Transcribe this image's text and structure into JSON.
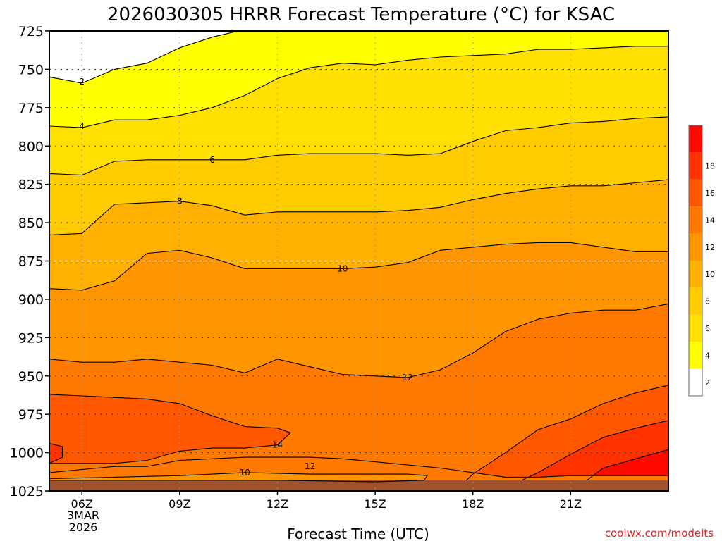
{
  "chart_data": {
    "type": "contour",
    "title": "2026030305 HRRR Forecast Temperature (°C) for KSAC",
    "xlabel": "Forecast Time (UTC)",
    "credit": "coolwx.com/modelts",
    "ylim": [
      725,
      1025
    ],
    "xlim": [
      5,
      24
    ],
    "y_ticks": [
      "725",
      "750",
      "775",
      "800",
      "825",
      "850",
      "875",
      "900",
      "925",
      "950",
      "975",
      "1000",
      "1025"
    ],
    "x_ticks": [
      {
        "hour": 6,
        "label": "06Z"
      },
      {
        "hour": 9,
        "label": "09Z"
      },
      {
        "hour": 12,
        "label": "12Z"
      },
      {
        "hour": 15,
        "label": "15Z"
      },
      {
        "hour": 18,
        "label": "18Z"
      },
      {
        "hour": 21,
        "label": "21Z"
      }
    ],
    "x_sub_labels": [
      "3MAR",
      "2026"
    ],
    "colorbar": {
      "levels": [
        "2",
        "4",
        "6",
        "8",
        "10",
        "12",
        "14",
        "16",
        "18"
      ],
      "colors": [
        "#ffffff",
        "#ffff00",
        "#ffe000",
        "#ffcc00",
        "#ffb000",
        "#ff9600",
        "#ff7800",
        "#ff5800",
        "#ff3200",
        "#ff0a00"
      ]
    },
    "contours": [
      {
        "level": 2,
        "label": "2",
        "label_at": [
          6,
          758
        ],
        "points": [
          [
            5,
            755
          ],
          [
            6,
            759
          ],
          [
            7,
            750
          ],
          [
            8,
            746
          ],
          [
            9,
            736
          ],
          [
            10,
            729
          ],
          [
            11,
            724
          ]
        ]
      },
      {
        "level": 4,
        "label": "4",
        "label_at": [
          6,
          787
        ],
        "points": [
          [
            5,
            787
          ],
          [
            6,
            788
          ],
          [
            7,
            783
          ],
          [
            8,
            783
          ],
          [
            9,
            780
          ],
          [
            10,
            775
          ],
          [
            11,
            767
          ],
          [
            12,
            756
          ],
          [
            13,
            749
          ],
          [
            14,
            746
          ],
          [
            15,
            747
          ],
          [
            16,
            744
          ],
          [
            17,
            742
          ],
          [
            18,
            741
          ],
          [
            19,
            740
          ],
          [
            20,
            737
          ],
          [
            21,
            737
          ],
          [
            22,
            736
          ],
          [
            23,
            735
          ],
          [
            24,
            735
          ]
        ]
      },
      {
        "level": 6,
        "label": "6",
        "label_at": [
          10,
          809
        ],
        "points": [
          [
            5,
            818
          ],
          [
            6,
            819
          ],
          [
            7,
            810
          ],
          [
            8,
            809
          ],
          [
            9,
            809
          ],
          [
            10,
            809
          ],
          [
            11,
            809
          ],
          [
            12,
            806
          ],
          [
            13,
            805
          ],
          [
            14,
            805
          ],
          [
            15,
            805
          ],
          [
            16,
            806
          ],
          [
            17,
            805
          ],
          [
            18,
            797
          ],
          [
            19,
            790
          ],
          [
            20,
            788
          ],
          [
            21,
            785
          ],
          [
            22,
            784
          ],
          [
            23,
            782
          ],
          [
            24,
            781
          ]
        ]
      },
      {
        "level": 8,
        "label": "8",
        "label_at": [
          9,
          836
        ],
        "points": [
          [
            5,
            858
          ],
          [
            6,
            857
          ],
          [
            7,
            838
          ],
          [
            8,
            837
          ],
          [
            9,
            836
          ],
          [
            10,
            839
          ],
          [
            11,
            845
          ],
          [
            12,
            843
          ],
          [
            13,
            843
          ],
          [
            14,
            843
          ],
          [
            15,
            843
          ],
          [
            16,
            842
          ],
          [
            17,
            840
          ],
          [
            18,
            835
          ],
          [
            19,
            831
          ],
          [
            20,
            828
          ],
          [
            21,
            826
          ],
          [
            22,
            826
          ],
          [
            23,
            824
          ],
          [
            24,
            822
          ]
        ]
      },
      {
        "level": 10,
        "label": "10",
        "label_at": [
          14,
          880
        ],
        "points": [
          [
            5,
            893
          ],
          [
            6,
            894
          ],
          [
            7,
            888
          ],
          [
            8,
            870
          ],
          [
            9,
            868
          ],
          [
            10,
            873
          ],
          [
            11,
            880
          ],
          [
            12,
            880
          ],
          [
            13,
            880
          ],
          [
            14,
            880
          ],
          [
            15,
            879
          ],
          [
            16,
            876
          ],
          [
            17,
            868
          ],
          [
            18,
            866
          ],
          [
            19,
            864
          ],
          [
            20,
            863
          ],
          [
            21,
            863
          ],
          [
            22,
            866
          ],
          [
            23,
            869
          ],
          [
            24,
            869
          ]
        ]
      },
      {
        "level": 12,
        "label": "12",
        "label_at": [
          16,
          951
        ],
        "points": [
          [
            5,
            939
          ],
          [
            6,
            941
          ],
          [
            7,
            941
          ],
          [
            8,
            939
          ],
          [
            9,
            941
          ],
          [
            10,
            943
          ],
          [
            11,
            948
          ],
          [
            12,
            939
          ],
          [
            13,
            944
          ],
          [
            14,
            949
          ],
          [
            15,
            950
          ],
          [
            16,
            951
          ],
          [
            17,
            946
          ],
          [
            18,
            935
          ],
          [
            19,
            921
          ],
          [
            20,
            913
          ],
          [
            21,
            909
          ],
          [
            22,
            907
          ],
          [
            23,
            907
          ],
          [
            24,
            903
          ]
        ]
      },
      {
        "level": 14,
        "label": "14",
        "label_at": [
          12,
          995
        ],
        "points": [
          [
            5,
            962
          ],
          [
            6,
            963
          ],
          [
            7,
            964
          ],
          [
            8,
            965
          ],
          [
            9,
            968
          ],
          [
            10,
            976
          ],
          [
            11,
            983
          ],
          [
            12,
            984
          ],
          [
            12.4,
            987
          ],
          [
            12.2,
            991
          ],
          [
            12,
            995
          ],
          [
            11,
            997
          ],
          [
            10,
            997
          ],
          [
            9,
            999
          ],
          [
            8,
            1005
          ],
          [
            7,
            1007
          ],
          [
            6,
            1007
          ],
          [
            5,
            1007
          ]
        ]
      },
      {
        "level": 12,
        "label": "12",
        "label_at": [
          13,
          1009
        ],
        "points": [
          [
            5,
            1013
          ],
          [
            6,
            1011
          ],
          [
            7,
            1009
          ],
          [
            8,
            1009
          ],
          [
            9,
            1005
          ],
          [
            10,
            1004
          ],
          [
            11,
            1003
          ],
          [
            12,
            1003
          ],
          [
            13,
            1003
          ],
          [
            14,
            1004
          ],
          [
            15,
            1006
          ],
          [
            16,
            1008
          ],
          [
            17,
            1010
          ],
          [
            18,
            1013
          ],
          [
            19,
            1016
          ],
          [
            20,
            1016
          ],
          [
            21,
            1015
          ],
          [
            22,
            1015
          ],
          [
            23,
            1015
          ],
          [
            24,
            1015
          ]
        ]
      },
      {
        "level": 10,
        "label": "10",
        "label_at": [
          11,
          1013
        ],
        "points": [
          [
            5,
            1017
          ],
          [
            7,
            1016
          ],
          [
            9,
            1015
          ],
          [
            11,
            1013
          ],
          [
            13,
            1014
          ],
          [
            15,
            1014
          ],
          [
            16,
            1014
          ],
          [
            16.6,
            1015
          ],
          [
            16.5,
            1018
          ],
          [
            15,
            1019
          ],
          [
            12,
            1018
          ],
          [
            9,
            1018
          ],
          [
            6,
            1018
          ],
          [
            5,
            1018
          ]
        ]
      },
      {
        "level": 14,
        "label": "",
        "label_at": [
          18,
          1008
        ],
        "points": [
          [
            17.8,
            1018
          ],
          [
            18,
            1014
          ],
          [
            19,
            1000
          ],
          [
            20,
            985
          ],
          [
            21,
            978
          ],
          [
            22,
            968
          ],
          [
            23,
            961
          ],
          [
            24,
            956
          ]
        ]
      },
      {
        "level": 16,
        "label": "",
        "label_at": [
          20,
          1012
        ],
        "points": [
          [
            19.5,
            1018
          ],
          [
            20,
            1013
          ],
          [
            21,
            1001
          ],
          [
            22,
            990
          ],
          [
            23,
            984
          ],
          [
            24,
            979
          ]
        ]
      },
      {
        "level": 18,
        "label": "",
        "label_at": [
          22,
          1010
        ],
        "points": [
          [
            21.5,
            1018
          ],
          [
            22,
            1010
          ],
          [
            23,
            1004
          ],
          [
            24,
            998
          ]
        ]
      },
      {
        "level": 16,
        "label": "",
        "label_at": [
          5,
          1000
        ],
        "points": [
          [
            5,
            994
          ],
          [
            5.4,
            996
          ],
          [
            5.4,
            1003
          ],
          [
            5,
            1007
          ]
        ]
      }
    ]
  }
}
